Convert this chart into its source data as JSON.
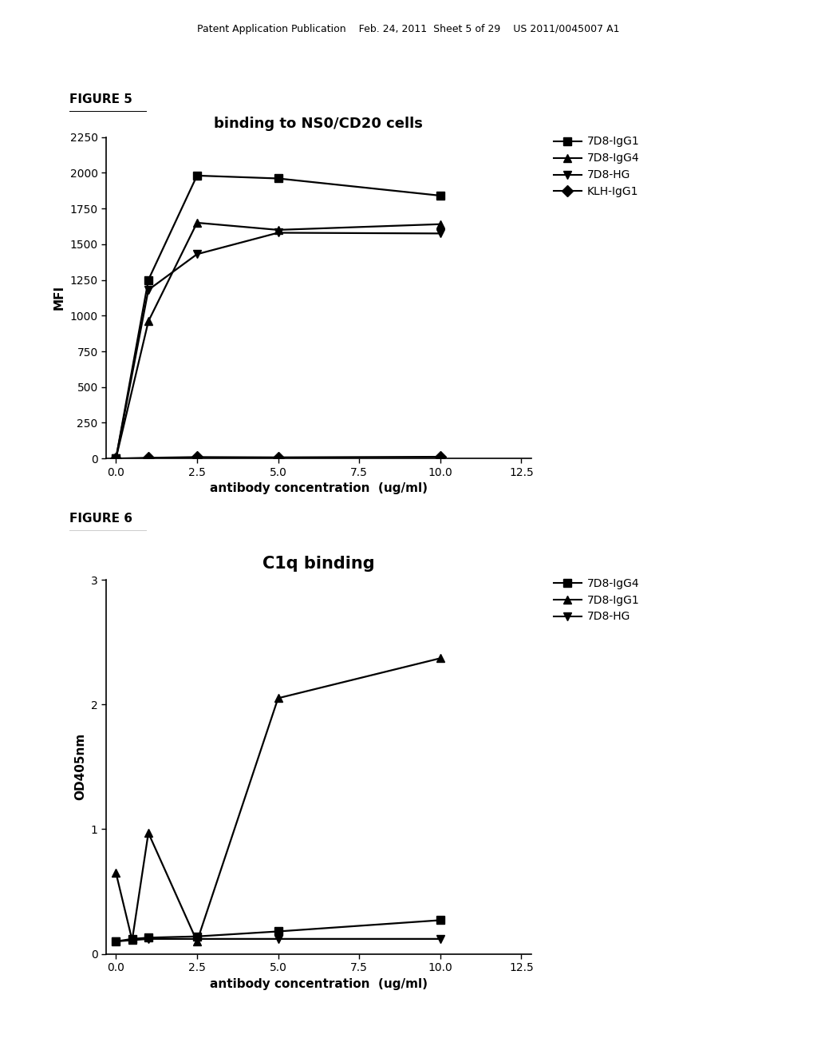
{
  "fig5": {
    "title": "binding to NS0/CD20 cells",
    "xlabel": "antibody concentration  (ug/ml)",
    "ylabel": "MFI",
    "xlim": [
      -0.3,
      12.8
    ],
    "ylim": [
      0,
      2250
    ],
    "yticks": [
      0,
      250,
      500,
      750,
      1000,
      1250,
      1500,
      1750,
      2000,
      2250
    ],
    "xticks": [
      0.0,
      2.5,
      5.0,
      7.5,
      10.0,
      12.5
    ],
    "series": [
      {
        "label": "7D8-IgG1",
        "x": [
          0.0,
          1.0,
          2.5,
          5.0,
          10.0
        ],
        "y": [
          0,
          1250,
          1980,
          1960,
          1840
        ],
        "marker": "s"
      },
      {
        "label": "7D8-IgG4",
        "x": [
          0.0,
          1.0,
          2.5,
          5.0,
          10.0
        ],
        "y": [
          0,
          960,
          1650,
          1600,
          1640
        ],
        "marker": "^"
      },
      {
        "label": "7D8-HG",
        "x": [
          0.0,
          1.0,
          2.5,
          5.0,
          10.0
        ],
        "y": [
          0,
          1180,
          1430,
          1580,
          1575
        ],
        "marker": "v"
      },
      {
        "label": "KLH-IgG1",
        "x": [
          0.0,
          1.0,
          2.5,
          5.0,
          10.0
        ],
        "y": [
          0,
          5,
          10,
          8,
          12
        ],
        "marker": "D"
      }
    ]
  },
  "fig6": {
    "title": "C1q binding",
    "xlabel": "antibody concentration  (ug/ml)",
    "ylabel": "OD405nm",
    "xlim": [
      -0.3,
      12.8
    ],
    "ylim": [
      0,
      3.0
    ],
    "yticks": [
      0,
      1,
      2,
      3
    ],
    "xticks": [
      0.0,
      2.5,
      5.0,
      7.5,
      10.0,
      12.5
    ],
    "series": [
      {
        "label": "7D8-IgG4",
        "x": [
          0.0,
          0.5,
          1.0,
          2.5,
          5.0,
          10.0
        ],
        "y": [
          0.1,
          0.12,
          0.13,
          0.14,
          0.18,
          0.27
        ],
        "marker": "s"
      },
      {
        "label": "7D8-IgG1",
        "x": [
          0.0,
          0.5,
          1.0,
          2.5,
          5.0,
          10.0
        ],
        "y": [
          0.65,
          0.11,
          0.97,
          0.1,
          2.05,
          2.37
        ],
        "marker": "^"
      },
      {
        "label": "7D8-HG",
        "x": [
          0.0,
          0.5,
          1.0,
          2.5,
          5.0,
          10.0
        ],
        "y": [
          0.1,
          0.11,
          0.12,
          0.12,
          0.12,
          0.12
        ],
        "marker": "v"
      }
    ]
  },
  "header_text": "Patent Application Publication    Feb. 24, 2011  Sheet 5 of 29    US 2011/0045007 A1",
  "figure5_label": "FIGURE 5",
  "figure6_label": "FIGURE 6",
  "background_color": "#ffffff",
  "line_color": "#000000",
  "title5_fontsize": 13,
  "title6_fontsize": 15,
  "axis_label_fontsize": 11,
  "tick_fontsize": 10,
  "legend_fontsize": 10,
  "header_fontsize": 9,
  "fig_label_fontsize": 11
}
